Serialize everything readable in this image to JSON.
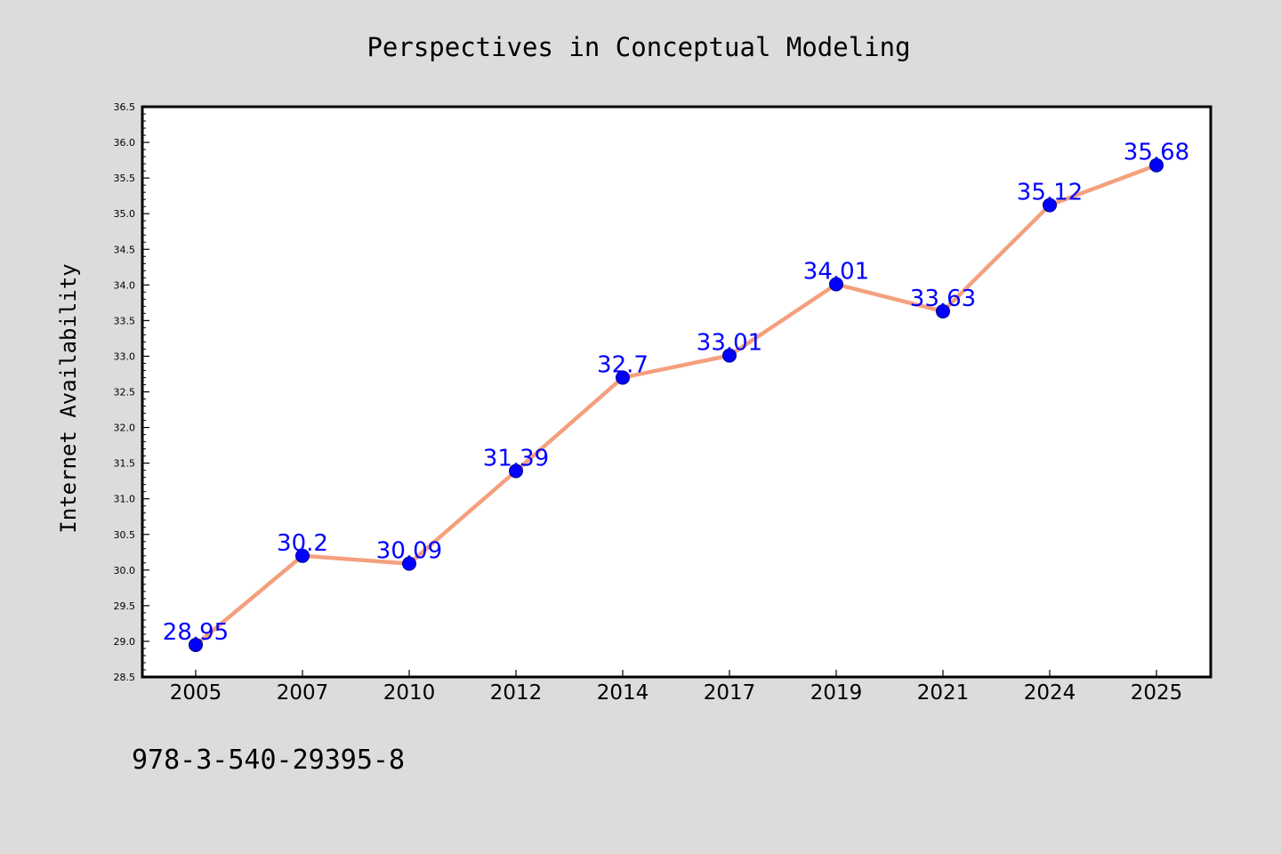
{
  "chart_data": {
    "type": "line",
    "title": "Perspectives in Conceptual Modeling",
    "xlabel": "",
    "ylabel": "Internet Availability",
    "categories": [
      "2005",
      "2007",
      "2010",
      "2012",
      "2014",
      "2017",
      "2019",
      "2021",
      "2024",
      "2025"
    ],
    "values": [
      28.95,
      30.2,
      30.09,
      31.39,
      32.7,
      33.01,
      34.01,
      33.63,
      35.12,
      35.68
    ],
    "data_labels": [
      "28.95",
      "30.2",
      "30.09",
      "31.39",
      "32.7",
      "33.01",
      "34.01",
      "33.63",
      "35.12",
      "35.68"
    ],
    "ylim": [
      28.5,
      36.5
    ],
    "y_ticks": [
      "28.5",
      "29.0",
      "29.5",
      "30.0",
      "30.5",
      "31.0",
      "31.5",
      "32.0",
      "32.5",
      "33.0",
      "33.5",
      "34.0",
      "34.5",
      "35.0",
      "35.5",
      "36.0",
      "36.5"
    ],
    "grid": false,
    "legend": "none",
    "colors": {
      "line": "#f4a07e",
      "marker": "#0000ff",
      "data_label": "#0000ff",
      "background": "#dcdcdc",
      "plot_background": "#ffffff"
    }
  },
  "footer": {
    "code": "978-3-540-29395-8"
  }
}
